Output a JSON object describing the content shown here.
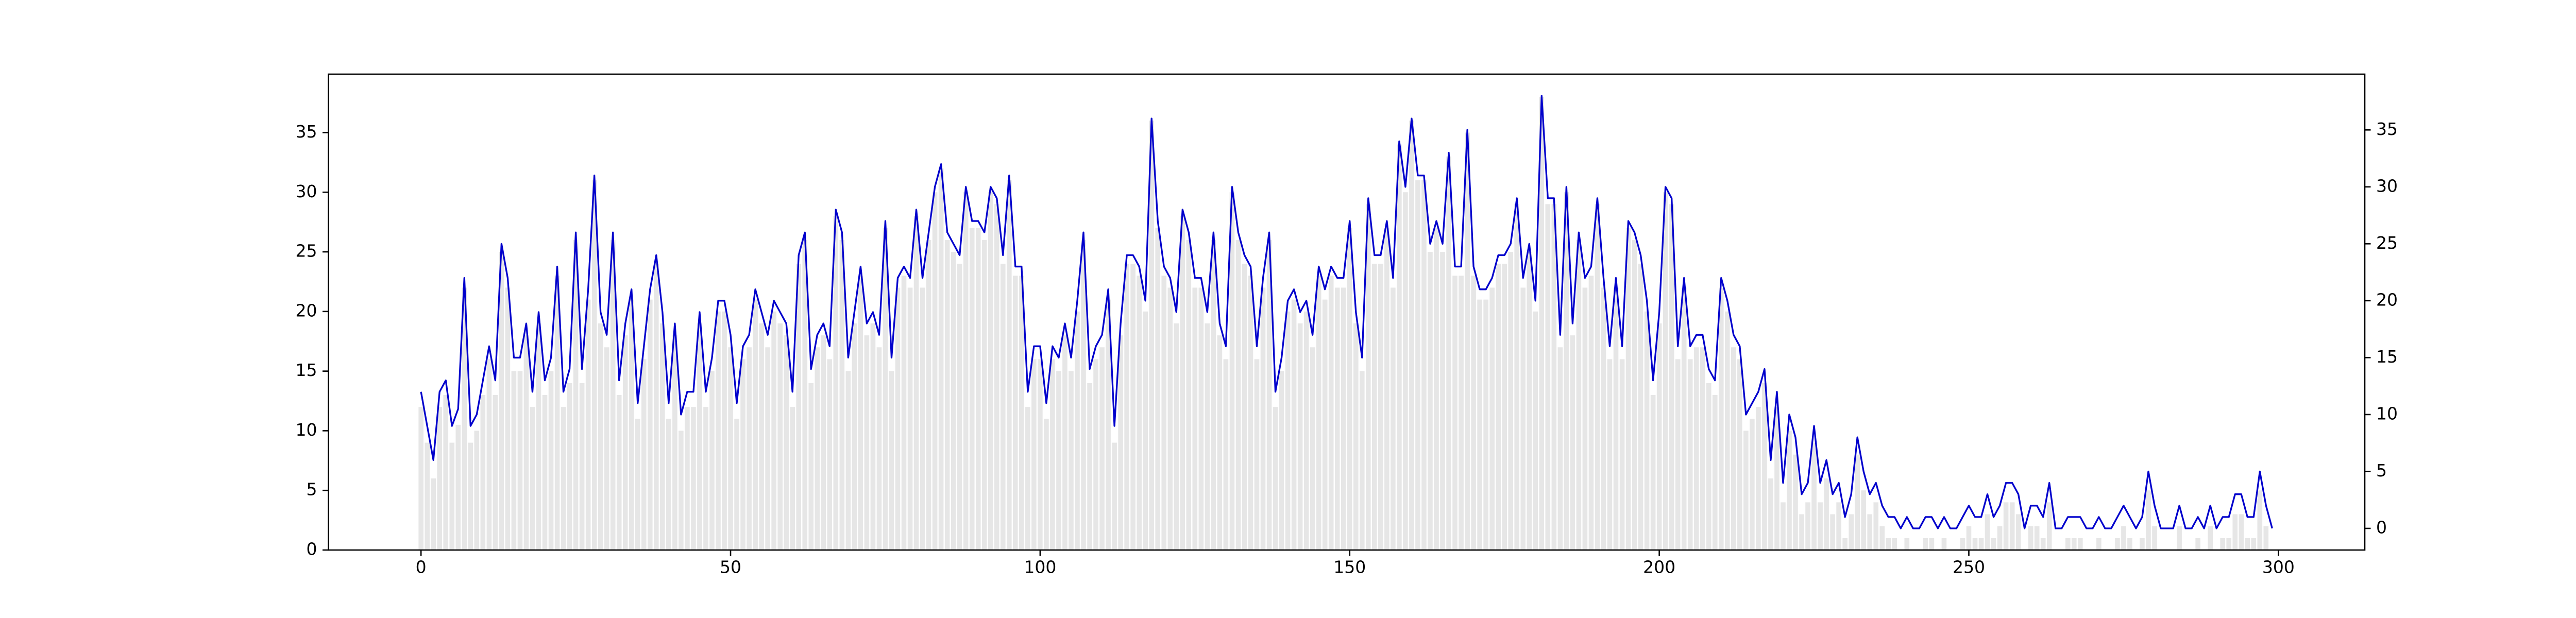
{
  "chart_data": {
    "type": "bar_line",
    "x": [
      0,
      1,
      2,
      3,
      4,
      5,
      6,
      7,
      8,
      9,
      10,
      11,
      12,
      13,
      14,
      15,
      16,
      17,
      18,
      19,
      20,
      21,
      22,
      23,
      24,
      25,
      26,
      27,
      28,
      29,
      30,
      31,
      32,
      33,
      34,
      35,
      36,
      37,
      38,
      39,
      40,
      41,
      42,
      43,
      44,
      45,
      46,
      47,
      48,
      49,
      50,
      51,
      52,
      53,
      54,
      55,
      56,
      57,
      58,
      59,
      60,
      61,
      62,
      63,
      64,
      65,
      66,
      67,
      68,
      69,
      70,
      71,
      72,
      73,
      74,
      75,
      76,
      77,
      78,
      79,
      80,
      81,
      82,
      83,
      84,
      85,
      86,
      87,
      88,
      89,
      90,
      91,
      92,
      93,
      94,
      95,
      96,
      97,
      98,
      99,
      100,
      101,
      102,
      103,
      104,
      105,
      106,
      107,
      108,
      109,
      110,
      111,
      112,
      113,
      114,
      115,
      116,
      117,
      118,
      119,
      120,
      121,
      122,
      123,
      124,
      125,
      126,
      127,
      128,
      129,
      130,
      131,
      132,
      133,
      134,
      135,
      136,
      137,
      138,
      139,
      140,
      141,
      142,
      143,
      144,
      145,
      146,
      147,
      148,
      149,
      150,
      151,
      152,
      153,
      154,
      155,
      156,
      157,
      158,
      159,
      160,
      161,
      162,
      163,
      164,
      165,
      166,
      167,
      168,
      169,
      170,
      171,
      172,
      173,
      174,
      175,
      176,
      177,
      178,
      179,
      180,
      181,
      182,
      183,
      184,
      185,
      186,
      187,
      188,
      189,
      190,
      191,
      192,
      193,
      194,
      195,
      196,
      197,
      198,
      199,
      200,
      201,
      202,
      203,
      204,
      205,
      206,
      207,
      208,
      209,
      210,
      211,
      212,
      213,
      214,
      215,
      216,
      217,
      218,
      219,
      220,
      221,
      222,
      223,
      224,
      225,
      226,
      227,
      228,
      229,
      230,
      231,
      232,
      233,
      234,
      235,
      236,
      237,
      238,
      239,
      240,
      241,
      242,
      243,
      244,
      245,
      246,
      247,
      248,
      249,
      250,
      251,
      252,
      253,
      254,
      255,
      256,
      257,
      258,
      259,
      260,
      261,
      262,
      263,
      264,
      265,
      266,
      267,
      268,
      269,
      270,
      271,
      272,
      273,
      274,
      275,
      276,
      277,
      278,
      279,
      280,
      281,
      282,
      283,
      284,
      285,
      286,
      287,
      288,
      289,
      290,
      291,
      292,
      293,
      294,
      295,
      296,
      297,
      298,
      299
    ],
    "values": [
      12,
      9,
      6,
      12,
      13,
      9,
      10.5,
      22,
      9,
      10,
      13,
      16,
      13,
      25,
      22,
      15,
      15,
      18,
      12,
      19,
      13,
      15,
      23,
      12,
      14,
      26,
      14,
      21,
      31,
      19,
      17,
      26,
      13,
      18,
      21,
      11,
      16,
      21,
      24,
      19,
      11,
      18,
      10,
      12,
      12,
      19,
      12,
      15,
      20,
      20,
      17,
      11,
      16,
      17,
      21,
      19,
      17,
      20,
      19,
      18,
      12,
      24,
      26,
      14,
      17,
      18,
      16,
      28,
      26,
      15,
      19,
      23,
      18,
      19,
      17,
      27,
      15,
      22,
      23,
      22,
      28,
      22,
      26,
      30,
      32,
      26,
      25,
      24,
      30,
      27,
      27,
      26,
      30,
      29,
      24,
      31,
      23,
      23,
      12,
      16,
      16,
      11,
      16,
      15,
      18,
      15,
      20,
      26,
      14,
      16,
      17,
      21,
      9,
      18,
      24,
      24,
      23,
      20,
      36,
      27,
      23,
      22,
      19,
      28,
      26,
      22,
      22,
      19,
      26,
      18,
      16,
      30,
      26,
      24,
      23,
      16,
      22,
      26,
      12,
      15,
      20,
      21,
      19,
      20,
      17,
      23,
      21,
      23,
      22,
      22,
      27,
      19,
      15,
      29,
      24,
      24,
      27,
      22,
      34,
      30,
      36,
      31,
      31,
      25,
      27,
      25,
      33,
      23,
      23,
      35,
      23,
      21,
      21,
      22,
      24,
      24,
      25,
      29,
      22,
      25,
      20,
      38,
      29,
      29,
      17,
      30,
      18,
      26,
      22,
      23,
      29,
      22,
      16,
      22,
      16,
      27,
      26,
      24,
      20,
      13,
      19,
      30,
      29,
      16,
      22,
      16,
      17,
      17,
      14,
      13,
      22,
      20,
      17,
      16,
      10,
      11,
      12,
      14,
      6,
      12,
      4,
      10,
      8,
      3,
      4,
      9,
      4,
      6,
      3,
      4,
      1,
      3,
      8,
      5,
      3,
      4,
      2,
      1,
      1,
      0,
      1,
      0,
      0,
      1,
      1,
      0,
      1,
      0,
      0,
      1,
      2,
      1,
      1,
      3,
      1,
      2,
      4,
      4,
      3,
      0,
      2,
      2,
      1,
      4,
      0,
      0,
      1,
      1,
      1,
      0,
      0,
      1,
      0,
      0,
      1,
      2,
      1,
      0,
      1,
      5,
      2,
      0,
      0,
      0,
      2,
      0,
      0,
      1,
      0,
      2,
      0,
      1,
      1,
      3,
      3,
      1,
      1,
      5,
      2,
      0
    ],
    "bar_color": "#e6e6e6",
    "line_color": "#0000cc",
    "xlim": [
      -14.95,
      313.95
    ],
    "xticks": [
      0,
      50,
      100,
      150,
      200,
      250,
      300
    ],
    "ylim": [
      0,
      39.9
    ],
    "yticks": [
      0,
      5,
      10,
      15,
      20,
      25,
      30,
      35
    ],
    "y2lim": [
      -1.9,
      39.9
    ],
    "y2ticks": [
      0,
      5,
      10,
      15,
      20,
      25,
      30,
      35
    ]
  }
}
